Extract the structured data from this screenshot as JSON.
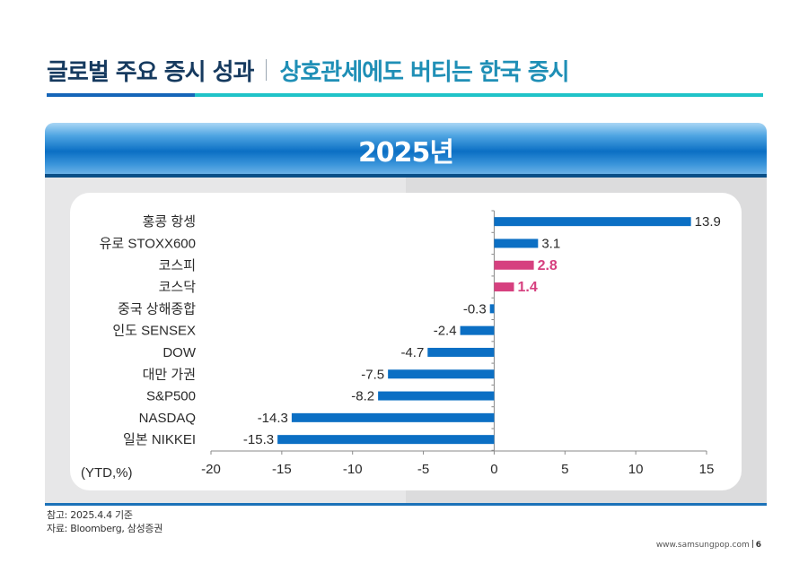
{
  "header": {
    "title": "글로벌 주요 증시 성과",
    "subtitle": "상호관세에도 버티는 한국 증시"
  },
  "panel": {
    "title": "2025년"
  },
  "colors": {
    "bar_default": "#0b6fc4",
    "bar_highlight": "#d6407f",
    "title_dark": "#163a5f",
    "title_accent": "#1f8fb6"
  },
  "chart_data": {
    "type": "bar",
    "orientation": "horizontal",
    "title": "2025년",
    "xlabel": "(YTD,%)",
    "ylabel": "",
    "xlim": [
      -20,
      15
    ],
    "xticks": [
      -20,
      -15,
      -10,
      -5,
      0,
      5,
      10,
      15
    ],
    "xtick_labels": [
      "-20",
      "-15",
      "-10",
      "-5",
      "0",
      "5",
      "10",
      "15"
    ],
    "grid": false,
    "legend": "none",
    "categories": [
      "홍콩 항셍",
      "유로 STOXX600",
      "코스피",
      "코스닥",
      "중국 상해종합",
      "인도 SENSEX",
      "DOW",
      "대만 가권",
      "S&P500",
      "NASDAQ",
      "일본 NIKKEI"
    ],
    "values": [
      13.9,
      3.1,
      2.8,
      1.4,
      -0.3,
      -2.4,
      -4.7,
      -7.5,
      -8.2,
      -14.3,
      -15.3
    ],
    "value_labels": [
      "13.9",
      "3.1",
      "2.8",
      "1.4",
      "-0.3",
      "-2.4",
      "-4.7",
      "-7.5",
      "-8.2",
      "-14.3",
      "-15.3"
    ],
    "highlighted": [
      false,
      false,
      true,
      true,
      false,
      false,
      false,
      false,
      false,
      false,
      false
    ]
  },
  "notes": {
    "line1": "참고: 2025.4.4 기준",
    "line2": "자료: Bloomberg, 삼성증권"
  },
  "footer": {
    "url": "www.samsungpop.com",
    "page": "6"
  }
}
